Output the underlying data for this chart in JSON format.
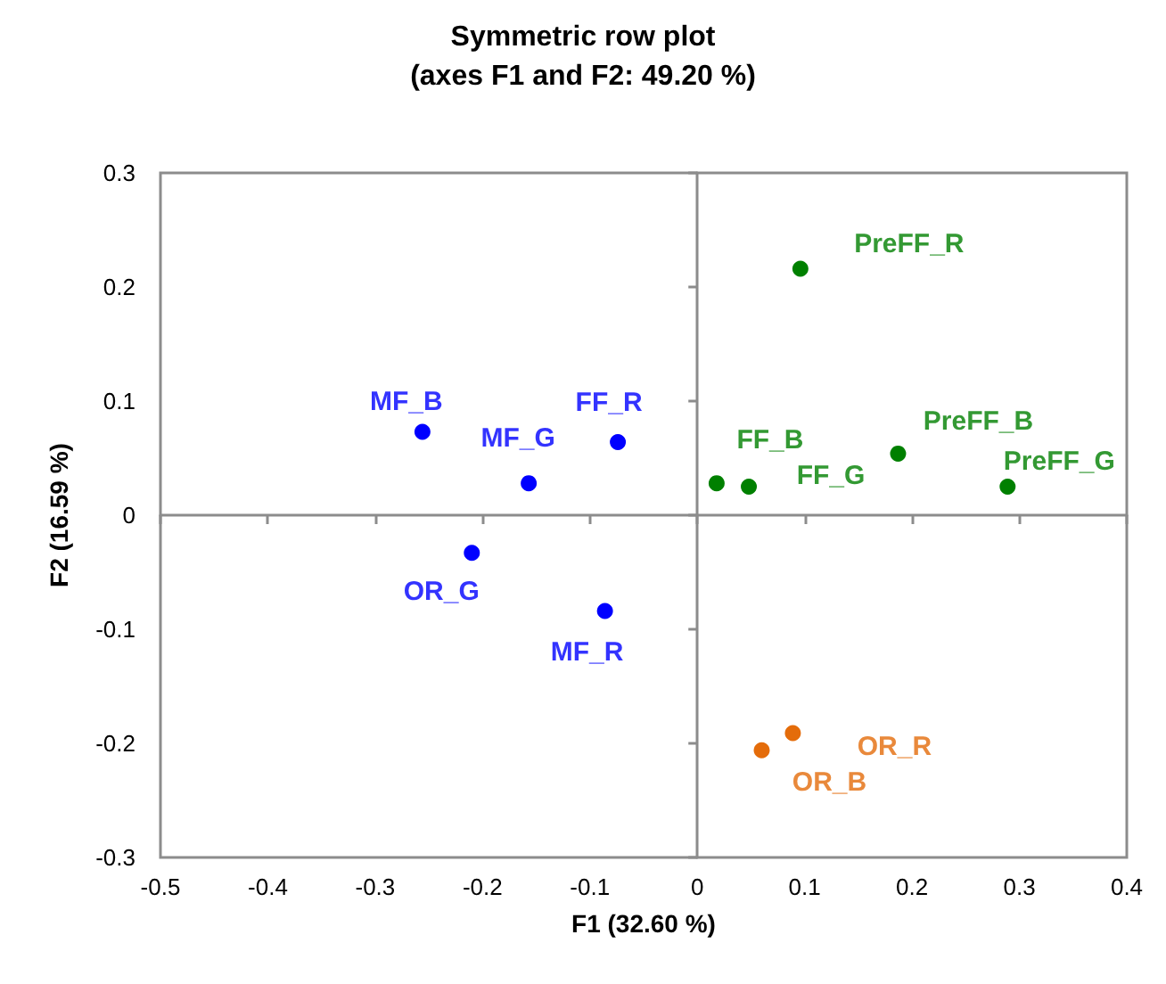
{
  "chart_data": {
    "type": "scatter",
    "title": "Symmetric row plot",
    "subtitle": "(axes F1 and F2: 49.20 %)",
    "xlabel": "F1 (32.60 %)",
    "ylabel": "F2 (16.59 %)",
    "series": [
      {
        "color": "#008000",
        "x": [
          0.096,
          0.187,
          0.289,
          0.018,
          0.048
        ],
        "values": [
          0.216,
          0.054,
          0.025,
          0.028,
          0.025
        ]
      },
      {
        "color": "#0000ff",
        "x": [
          -0.256,
          -0.157,
          -0.074,
          -0.21,
          -0.086
        ],
        "values": [
          0.073,
          0.028,
          0.064,
          -0.033,
          -0.084
        ]
      },
      {
        "color": "#e46c0a",
        "x": [
          0.089,
          0.06
        ],
        "values": [
          -0.191,
          -0.206
        ]
      }
    ],
    "annotations": [
      {
        "text": "PreFF_R",
        "x": 0.096,
        "y": 0.216
      },
      {
        "text": "PreFF_B",
        "x": 0.187,
        "y": 0.054
      },
      {
        "text": "PreFF_G",
        "x": 0.289,
        "y": 0.025
      },
      {
        "text": "FF_B",
        "x": 0.018,
        "y": 0.028
      },
      {
        "text": "FF_G",
        "x": 0.048,
        "y": 0.025
      },
      {
        "text": "MF_B",
        "x": -0.256,
        "y": 0.073
      },
      {
        "text": "MF_G",
        "x": -0.157,
        "y": 0.028
      },
      {
        "text": "FF_R",
        "x": -0.074,
        "y": 0.064
      },
      {
        "text": "OR_G",
        "x": -0.21,
        "y": -0.033
      },
      {
        "text": "MF_R",
        "x": -0.086,
        "y": -0.084
      },
      {
        "text": "OR_R",
        "x": 0.089,
        "y": -0.191
      },
      {
        "text": "OR_B",
        "x": 0.06,
        "y": -0.206
      }
    ],
    "xlim": [
      -0.5,
      0.4
    ],
    "xticks": [
      -0.5,
      -0.4,
      -0.3,
      -0.2,
      -0.1,
      0,
      0.1,
      0.2,
      0.3,
      0.4
    ],
    "ylim": [
      -0.3,
      0.3
    ],
    "yticks": [
      -0.3,
      -0.2,
      -0.1,
      0,
      0.1,
      0.2,
      0.3
    ],
    "marker": "circle"
  }
}
